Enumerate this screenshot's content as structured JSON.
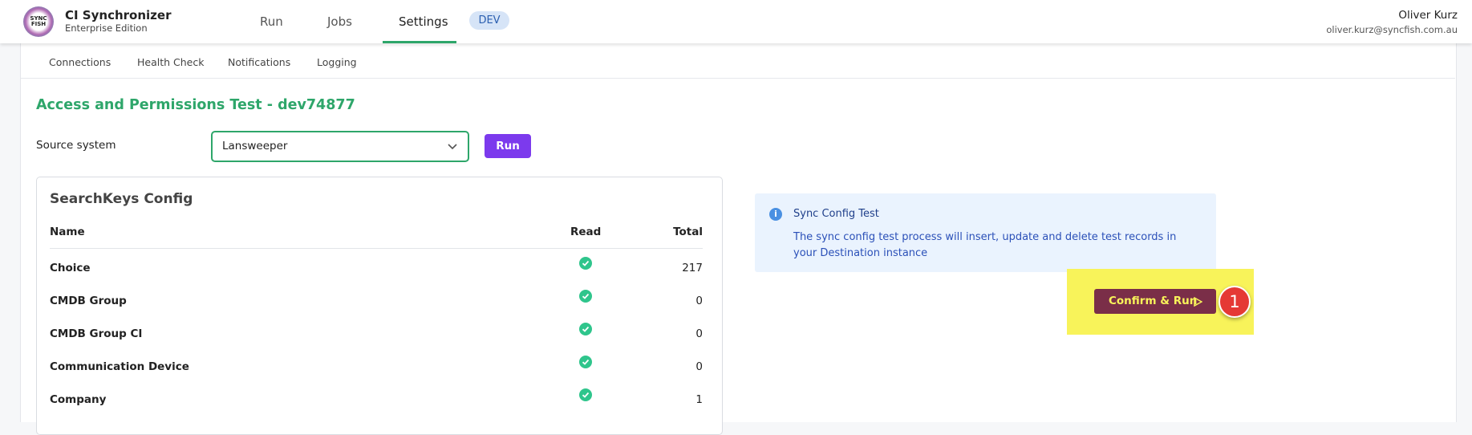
{
  "header": {
    "app_title": "CI Synchronizer",
    "app_subtitle": "Enterprise Edition",
    "logo_text": "SYNC FISH",
    "nav": [
      "Run",
      "Jobs",
      "Settings"
    ],
    "env_badge": "DEV",
    "user_name": "Oliver Kurz",
    "user_email": "oliver.kurz@syncfish.com.au"
  },
  "tabs": [
    "Connections",
    "Health Check",
    "Notifications",
    "Logging"
  ],
  "heading": "Access and Permissions Test - dev74877",
  "form": {
    "label": "Source system",
    "selected": "Lansweeper",
    "button": "Run"
  },
  "table": {
    "title": "SearchKeys Config",
    "columns": [
      "Name",
      "Read",
      "Total"
    ],
    "rows": [
      [
        "Choice",
        "217"
      ],
      [
        "CMDB Group",
        "0"
      ],
      [
        "CMDB Group CI",
        "0"
      ],
      [
        "Communication Device",
        "0"
      ],
      [
        "Company",
        "1"
      ]
    ]
  },
  "info": {
    "title": "Sync Config Test",
    "text": "The sync config test process will insert, update and delete test records in your Destination instance"
  },
  "action_button": "Confirm & Run",
  "step_badge": "1"
}
